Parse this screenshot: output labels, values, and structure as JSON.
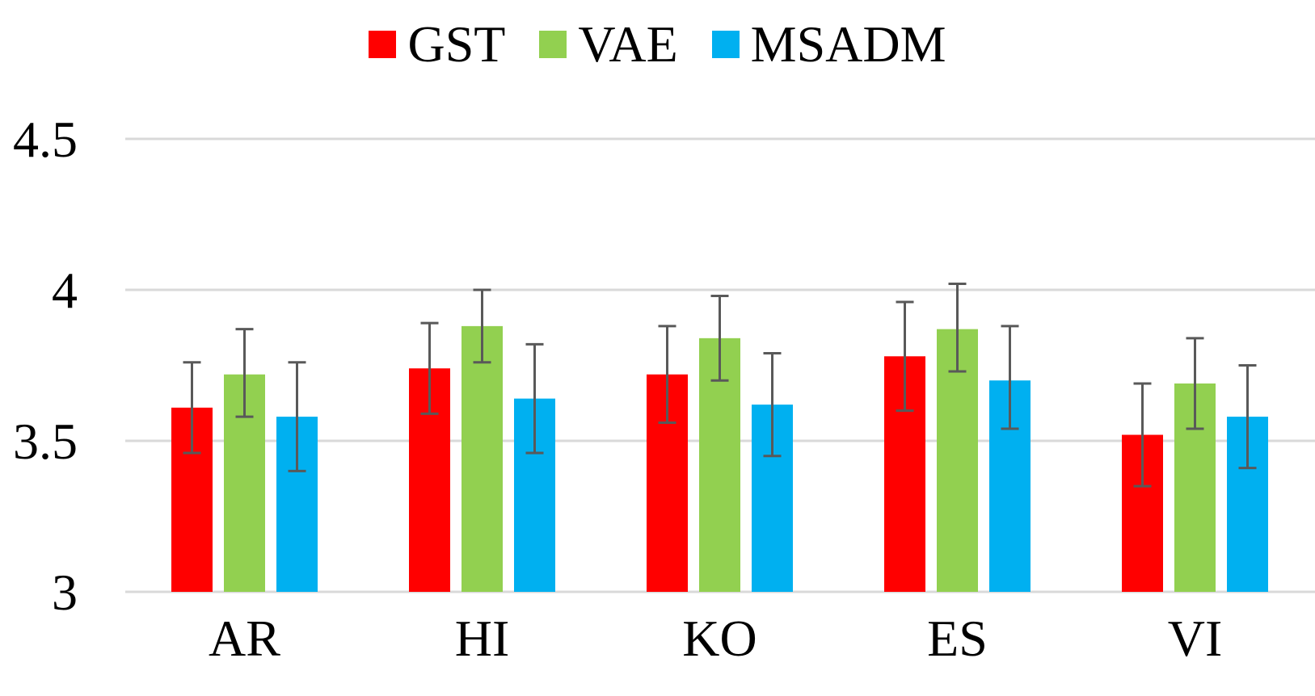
{
  "chart_data": {
    "type": "bar",
    "categories": [
      "AR",
      "HI",
      "KO",
      "ES",
      "VI"
    ],
    "series": [
      {
        "name": "GST",
        "color": "#ff0000",
        "values": [
          3.61,
          3.74,
          3.72,
          3.78,
          3.52
        ],
        "error_low": [
          3.46,
          3.59,
          3.56,
          3.6,
          3.35
        ],
        "error_high": [
          3.76,
          3.89,
          3.88,
          3.96,
          3.69
        ]
      },
      {
        "name": "VAE",
        "color": "#92d050",
        "values": [
          3.72,
          3.88,
          3.84,
          3.87,
          3.69
        ],
        "error_low": [
          3.58,
          3.76,
          3.7,
          3.73,
          3.54
        ],
        "error_high": [
          3.87,
          4.0,
          3.98,
          4.02,
          3.84
        ]
      },
      {
        "name": "MSADM",
        "color": "#00b0f0",
        "values": [
          3.58,
          3.64,
          3.62,
          3.7,
          3.58
        ],
        "error_low": [
          3.4,
          3.46,
          3.45,
          3.54,
          3.41
        ],
        "error_high": [
          3.76,
          3.82,
          3.79,
          3.88,
          3.75
        ]
      }
    ],
    "ylim": [
      3,
      4.5
    ],
    "yticks": [
      "3",
      "3.5",
      "4",
      "4.5"
    ],
    "ytick_values": [
      3,
      3.5,
      4,
      4.5
    ],
    "grid": true,
    "legend_position": "top",
    "gridline_color": "#d9d9d9",
    "errorbar_color": "#595959"
  }
}
